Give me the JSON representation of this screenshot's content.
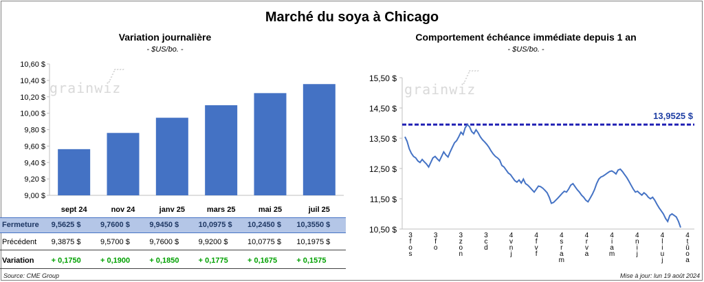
{
  "title": "Marché du soya à Chicago",
  "left": {
    "title": "Variation journalière",
    "unit": "- $US/bo. -",
    "logo": "grainwiz",
    "y_ticks": [
      "10,60 $",
      "10,40 $",
      "10,20 $",
      "10,00 $",
      "9,80 $",
      "9,60 $",
      "9,40 $",
      "9,20 $",
      "9,00 $"
    ],
    "table": {
      "months": [
        "sept 24",
        "nov 24",
        "janv 25",
        "mars 25",
        "mai 25",
        "juil 25"
      ],
      "fermeture_label": "Fermeture",
      "fermeture": [
        "9,5625  $",
        "9,7600  $",
        "9,9450  $",
        "10,0975  $",
        "10,2450  $",
        "10,3550  $"
      ],
      "precedent_label": "Précédent",
      "precedent": [
        "9,3875  $",
        "9,5700  $",
        "9,7600  $",
        "9,9200  $",
        "10,0775  $",
        "10,1975  $"
      ],
      "variation_label": "Variation",
      "variation": [
        "+ 0,1750",
        "+ 0,1900",
        "+ 0,1850",
        "+ 0,1775",
        "+ 0,1675",
        "+ 0,1575"
      ]
    }
  },
  "right": {
    "title": "Comportement  échéance immédiate depuis 1 an",
    "unit": "- $US/bo. -",
    "logo": "grainwiz",
    "y_ticks": [
      "15,50 $",
      "14,50 $",
      "13,50 $",
      "12,50 $",
      "11,50 $",
      "10,50 $"
    ],
    "ref_label": "13,9525  $",
    "x_ticks": [
      "3 f o s",
      "3 f o",
      "3 z o n",
      "3 c d",
      "4 v n j",
      "4 f v f",
      "4 s r a m",
      "4 r v a",
      "4 i a m",
      "4 n i j",
      "4 l i u j",
      "4 t û o a"
    ]
  },
  "source": "Source: CME Group",
  "updated": "Mise à jour: lun 19 août 2024",
  "colors": {
    "bar": "#4472c4",
    "line": "#4472c4",
    "ref": "#1f1fb4",
    "ref_label": "#1f3fa4",
    "up": "#00a000"
  },
  "chart_data": [
    {
      "type": "bar",
      "title": "Variation journalière",
      "ylabel": "- $US/bo. -",
      "categories": [
        "sept 24",
        "nov 24",
        "janv 25",
        "mars 25",
        "mai 25",
        "juil 25"
      ],
      "values": [
        9.5625,
        9.76,
        9.945,
        10.0975,
        10.245,
        10.355
      ],
      "ylim": [
        9.0,
        10.6
      ],
      "grid": false
    },
    {
      "type": "line",
      "title": "Comportement  échéance immédiate depuis 1 an",
      "ylabel": "- $US/bo. -",
      "ylim": [
        10.5,
        15.5
      ],
      "reference_line": 13.9525,
      "values": [
        13.55,
        13.4,
        13.15,
        13.0,
        12.9,
        12.85,
        12.75,
        12.7,
        12.8,
        12.72,
        12.65,
        12.55,
        12.7,
        12.85,
        12.9,
        12.82,
        12.75,
        12.9,
        13.05,
        12.95,
        12.88,
        13.05,
        13.2,
        13.35,
        13.42,
        13.55,
        13.7,
        13.62,
        13.85,
        13.95,
        13.88,
        13.72,
        13.65,
        13.78,
        13.68,
        13.55,
        13.45,
        13.38,
        13.3,
        13.2,
        13.08,
        12.98,
        12.9,
        12.85,
        12.78,
        12.6,
        12.55,
        12.45,
        12.35,
        12.3,
        12.2,
        12.1,
        12.05,
        12.12,
        12.02,
        12.15,
        12.0,
        11.95,
        11.88,
        11.8,
        11.72,
        11.82,
        11.92,
        11.9,
        11.85,
        11.78,
        11.7,
        11.55,
        11.35,
        11.38,
        11.45,
        11.52,
        11.6,
        11.68,
        11.75,
        11.72,
        11.82,
        11.95,
        12.0,
        11.9,
        11.8,
        11.72,
        11.62,
        11.55,
        11.45,
        11.4,
        11.52,
        11.65,
        11.8,
        12.0,
        12.15,
        12.22,
        12.25,
        12.3,
        12.35,
        12.4,
        12.42,
        12.38,
        12.32,
        12.45,
        12.48,
        12.4,
        12.3,
        12.2,
        12.08,
        11.95,
        11.82,
        11.72,
        11.75,
        11.68,
        11.62,
        11.7,
        11.64,
        11.55,
        11.5,
        11.55,
        11.45,
        11.32,
        11.2,
        11.1,
        11.0,
        10.85,
        10.75,
        10.95,
        11.0,
        10.95,
        10.9,
        10.75,
        10.55
      ]
    }
  ]
}
